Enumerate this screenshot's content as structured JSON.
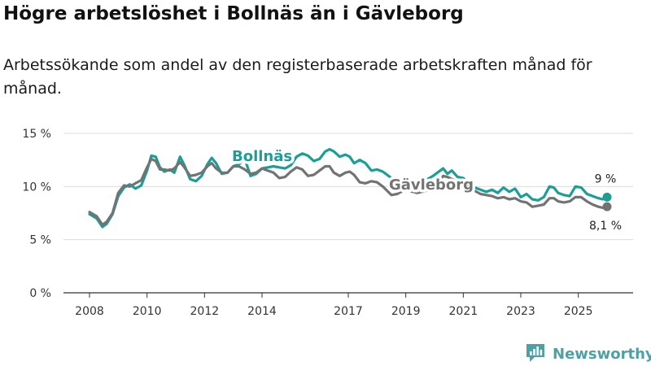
{
  "title": "Högre arbetslöshet i Bollnäs än i Gävleborg",
  "subtitle": "Arbetssökande som andel av den registerbaserade arbetskraften månad för månad.",
  "brand": {
    "name": "Newsworthy",
    "icon": "newsworthy-logo-icon"
  },
  "colors": {
    "bollnas": "#1a9e96",
    "gavleborg": "#737373",
    "grid": "#dcdcdc",
    "brand": "#4fa0a4"
  },
  "chart_data": {
    "type": "line",
    "title": "Högre arbetslöshet i Bollnäs än i Gävleborg",
    "ylabel": "",
    "xlabel": "",
    "ylim": [
      0,
      15
    ],
    "xlim": [
      2008,
      2026.25
    ],
    "grid": true,
    "yticks": [
      {
        "value": 0,
        "label": "0 %"
      },
      {
        "value": 5,
        "label": "5 %"
      },
      {
        "value": 10,
        "label": "10 %"
      },
      {
        "value": 15,
        "label": "15 %"
      }
    ],
    "xticks": [
      {
        "value": 2008,
        "label": "2008"
      },
      {
        "value": 2010,
        "label": "2010"
      },
      {
        "value": 2012,
        "label": "2012"
      },
      {
        "value": 2014,
        "label": "2014"
      },
      {
        "value": 2017,
        "label": "2017"
      },
      {
        "value": 2019,
        "label": "2019"
      },
      {
        "value": 2021,
        "label": "2021"
      },
      {
        "value": 2023,
        "label": "2023"
      },
      {
        "value": 2025,
        "label": "2025"
      }
    ],
    "series": [
      {
        "name": "Bollnäs",
        "end_label": "9 %",
        "points": [
          [
            2008.0,
            7.4
          ],
          [
            2008.25,
            7.0
          ],
          [
            2008.45,
            6.2
          ],
          [
            2008.6,
            6.5
          ],
          [
            2008.8,
            7.4
          ],
          [
            2009.0,
            9.1
          ],
          [
            2009.2,
            9.9
          ],
          [
            2009.4,
            10.2
          ],
          [
            2009.6,
            9.8
          ],
          [
            2009.8,
            10.1
          ],
          [
            2010.0,
            11.5
          ],
          [
            2010.15,
            12.9
          ],
          [
            2010.3,
            12.8
          ],
          [
            2010.45,
            11.8
          ],
          [
            2010.6,
            11.4
          ],
          [
            2010.8,
            11.6
          ],
          [
            2010.95,
            11.3
          ],
          [
            2011.15,
            12.8
          ],
          [
            2011.3,
            12.0
          ],
          [
            2011.5,
            10.7
          ],
          [
            2011.7,
            10.5
          ],
          [
            2011.9,
            11.0
          ],
          [
            2012.1,
            12.1
          ],
          [
            2012.25,
            12.7
          ],
          [
            2012.4,
            12.2
          ],
          [
            2012.6,
            11.2
          ],
          [
            2012.8,
            11.3
          ],
          [
            2013.0,
            11.9
          ],
          [
            2013.2,
            12.1
          ],
          [
            2013.4,
            12.6
          ],
          [
            2013.6,
            11.0
          ],
          [
            2013.8,
            11.2
          ],
          [
            2014.0,
            11.7
          ],
          [
            2014.2,
            11.8
          ],
          [
            2014.4,
            11.9
          ],
          [
            2014.6,
            11.8
          ],
          [
            2014.8,
            11.7
          ],
          [
            2015.0,
            12.0
          ],
          [
            2015.2,
            12.8
          ],
          [
            2015.4,
            13.1
          ],
          [
            2015.6,
            12.9
          ],
          [
            2015.8,
            12.4
          ],
          [
            2016.0,
            12.6
          ],
          [
            2016.2,
            13.3
          ],
          [
            2016.35,
            13.5
          ],
          [
            2016.5,
            13.3
          ],
          [
            2016.7,
            12.8
          ],
          [
            2016.9,
            13.0
          ],
          [
            2017.05,
            12.8
          ],
          [
            2017.2,
            12.2
          ],
          [
            2017.4,
            12.5
          ],
          [
            2017.6,
            12.2
          ],
          [
            2017.8,
            11.5
          ],
          [
            2018.0,
            11.6
          ],
          [
            2018.2,
            11.4
          ],
          [
            2018.5,
            10.8
          ],
          [
            2018.7,
            10.5
          ],
          [
            2018.9,
            10.3
          ],
          [
            2019.1,
            10.0
          ],
          [
            2019.4,
            10.2
          ],
          [
            2019.7,
            10.6
          ],
          [
            2019.95,
            11.0
          ],
          [
            2020.1,
            11.3
          ],
          [
            2020.3,
            11.7
          ],
          [
            2020.45,
            11.2
          ],
          [
            2020.6,
            11.5
          ],
          [
            2020.8,
            10.9
          ],
          [
            2021.0,
            10.8
          ],
          [
            2021.2,
            10.2
          ],
          [
            2021.4,
            9.9
          ],
          [
            2021.6,
            9.7
          ],
          [
            2021.8,
            9.5
          ],
          [
            2022.0,
            9.7
          ],
          [
            2022.2,
            9.4
          ],
          [
            2022.4,
            9.9
          ],
          [
            2022.6,
            9.5
          ],
          [
            2022.8,
            9.8
          ],
          [
            2023.0,
            9.0
          ],
          [
            2023.2,
            9.3
          ],
          [
            2023.4,
            8.8
          ],
          [
            2023.6,
            8.7
          ],
          [
            2023.8,
            9.0
          ],
          [
            2024.0,
            10.0
          ],
          [
            2024.15,
            9.9
          ],
          [
            2024.3,
            9.4
          ],
          [
            2024.5,
            9.2
          ],
          [
            2024.7,
            9.1
          ],
          [
            2024.9,
            10.0
          ],
          [
            2025.1,
            9.9
          ],
          [
            2025.3,
            9.3
          ],
          [
            2025.5,
            9.1
          ],
          [
            2025.7,
            8.9
          ],
          [
            2025.85,
            8.8
          ],
          [
            2026.0,
            9.0
          ]
        ]
      },
      {
        "name": "Gävleborg",
        "end_label": "8,1 %",
        "points": [
          [
            2008.0,
            7.6
          ],
          [
            2008.25,
            7.2
          ],
          [
            2008.45,
            6.4
          ],
          [
            2008.6,
            6.7
          ],
          [
            2008.8,
            7.5
          ],
          [
            2009.0,
            9.4
          ],
          [
            2009.2,
            10.1
          ],
          [
            2009.4,
            10.0
          ],
          [
            2009.6,
            10.3
          ],
          [
            2009.8,
            10.6
          ],
          [
            2010.0,
            11.8
          ],
          [
            2010.15,
            12.6
          ],
          [
            2010.3,
            12.4
          ],
          [
            2010.45,
            11.6
          ],
          [
            2010.6,
            11.6
          ],
          [
            2010.8,
            11.5
          ],
          [
            2010.95,
            11.7
          ],
          [
            2011.15,
            12.3
          ],
          [
            2011.3,
            11.8
          ],
          [
            2011.5,
            11.0
          ],
          [
            2011.7,
            11.1
          ],
          [
            2011.9,
            11.3
          ],
          [
            2012.1,
            11.9
          ],
          [
            2012.25,
            12.2
          ],
          [
            2012.4,
            11.7
          ],
          [
            2012.6,
            11.3
          ],
          [
            2012.8,
            11.3
          ],
          [
            2013.0,
            11.9
          ],
          [
            2013.2,
            11.9
          ],
          [
            2013.4,
            11.6
          ],
          [
            2013.6,
            11.2
          ],
          [
            2013.8,
            11.3
          ],
          [
            2014.0,
            11.7
          ],
          [
            2014.2,
            11.5
          ],
          [
            2014.4,
            11.3
          ],
          [
            2014.6,
            10.8
          ],
          [
            2014.8,
            10.9
          ],
          [
            2015.0,
            11.4
          ],
          [
            2015.2,
            11.8
          ],
          [
            2015.4,
            11.6
          ],
          [
            2015.6,
            11.0
          ],
          [
            2015.8,
            11.1
          ],
          [
            2016.0,
            11.5
          ],
          [
            2016.2,
            11.9
          ],
          [
            2016.35,
            11.9
          ],
          [
            2016.5,
            11.3
          ],
          [
            2016.7,
            11.0
          ],
          [
            2016.9,
            11.3
          ],
          [
            2017.05,
            11.4
          ],
          [
            2017.2,
            11.1
          ],
          [
            2017.4,
            10.4
          ],
          [
            2017.6,
            10.3
          ],
          [
            2017.8,
            10.5
          ],
          [
            2018.0,
            10.4
          ],
          [
            2018.2,
            10.0
          ],
          [
            2018.5,
            9.2
          ],
          [
            2018.7,
            9.3
          ],
          [
            2018.9,
            9.6
          ],
          [
            2019.1,
            9.6
          ],
          [
            2019.4,
            9.4
          ],
          [
            2019.7,
            9.6
          ],
          [
            2019.95,
            9.8
          ],
          [
            2020.1,
            10.3
          ],
          [
            2020.3,
            11.0
          ],
          [
            2020.45,
            10.9
          ],
          [
            2020.6,
            10.7
          ],
          [
            2020.8,
            10.4
          ],
          [
            2021.0,
            10.2
          ],
          [
            2021.2,
            9.9
          ],
          [
            2021.4,
            9.6
          ],
          [
            2021.6,
            9.3
          ],
          [
            2021.8,
            9.2
          ],
          [
            2022.0,
            9.1
          ],
          [
            2022.2,
            8.9
          ],
          [
            2022.4,
            9.0
          ],
          [
            2022.6,
            8.8
          ],
          [
            2022.8,
            8.9
          ],
          [
            2023.0,
            8.6
          ],
          [
            2023.2,
            8.5
          ],
          [
            2023.4,
            8.1
          ],
          [
            2023.6,
            8.2
          ],
          [
            2023.8,
            8.3
          ],
          [
            2024.0,
            8.9
          ],
          [
            2024.15,
            8.9
          ],
          [
            2024.3,
            8.6
          ],
          [
            2024.5,
            8.5
          ],
          [
            2024.7,
            8.6
          ],
          [
            2024.9,
            9.0
          ],
          [
            2025.1,
            9.0
          ],
          [
            2025.3,
            8.6
          ],
          [
            2025.5,
            8.3
          ],
          [
            2025.7,
            8.1
          ],
          [
            2025.85,
            8.0
          ],
          [
            2026.0,
            8.1
          ]
        ]
      }
    ]
  }
}
